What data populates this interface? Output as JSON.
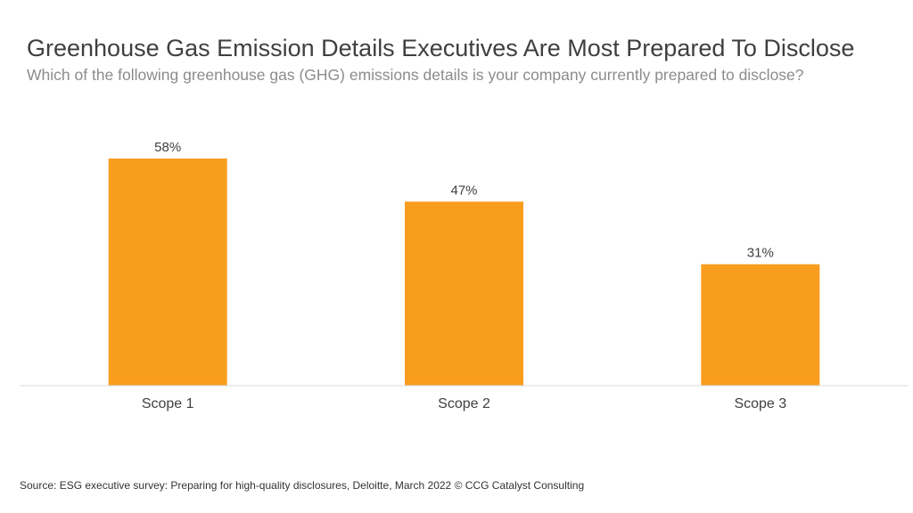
{
  "header": {
    "title": "Greenhouse Gas Emission Details Executives Are Most Prepared To Disclose",
    "subtitle": "Which of the following greenhouse gas (GHG) emissions details is your company currently prepared to disclose?"
  },
  "chart_data": {
    "type": "bar",
    "categories": [
      "Scope 1",
      "Scope 2",
      "Scope 3"
    ],
    "values": [
      58,
      47,
      31
    ],
    "value_labels": [
      "58%",
      "47%",
      "31%"
    ],
    "title": "Greenhouse Gas Emission Details Executives Are Most Prepared To Disclose",
    "subtitle": "Which of the following greenhouse gas (GHG) emissions details is your company currently prepared to disclose?",
    "xlabel": "",
    "ylabel": "",
    "ylim": [
      0,
      58
    ],
    "grid": false,
    "legend": "none",
    "bar_color": "#F99D1F",
    "axis_color": "#D9D9D9"
  },
  "footer": {
    "source": "Source: ESG executive survey: Preparing for high-quality disclosures, Deloitte, March 2022 © CCG Catalyst Consulting"
  }
}
